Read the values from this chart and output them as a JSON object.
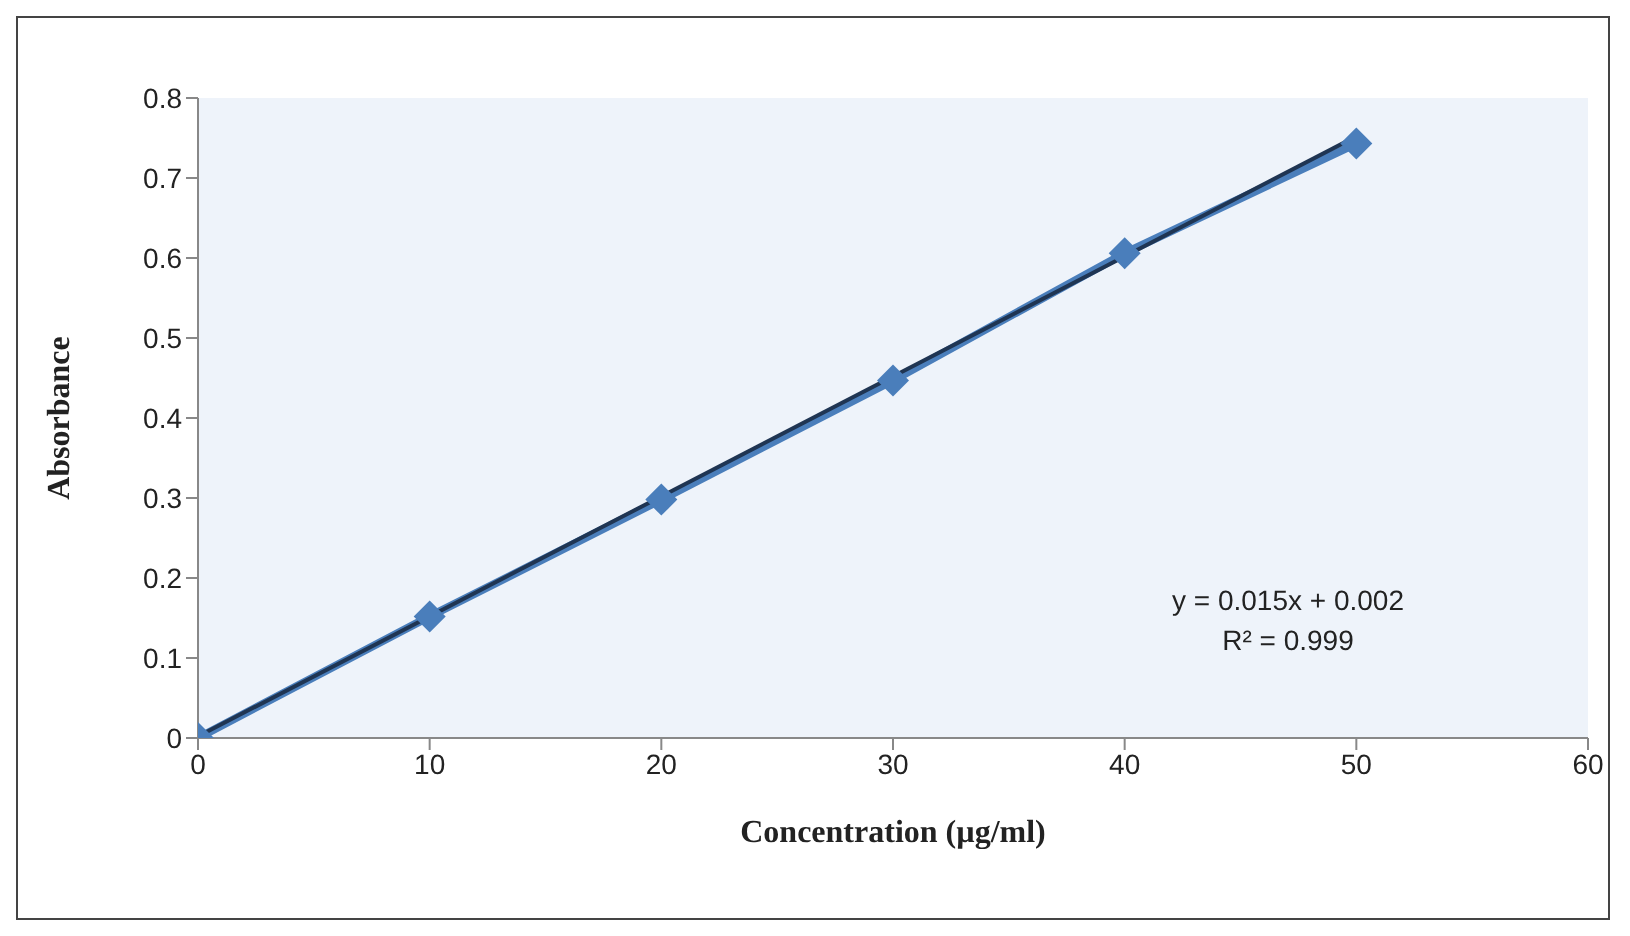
{
  "chart_data": {
    "type": "line",
    "xlabel": "Concentration (µg/ml)",
    "ylabel": "Absorbance",
    "xlim": [
      0,
      60
    ],
    "xticks": [
      0,
      10,
      20,
      30,
      40,
      50,
      60
    ],
    "ylim": [
      0,
      0.8
    ],
    "yticks": [
      0,
      0.1,
      0.2,
      0.3,
      0.4,
      0.5,
      0.6,
      0.7,
      0.8
    ],
    "grid": false,
    "series": [
      {
        "color": "#4a7ebb",
        "marker": "diamond",
        "x": [
          0,
          10,
          20,
          30,
          40,
          50
        ],
        "values": [
          0,
          0.152,
          0.298,
          0.447,
          0.606,
          0.743
        ]
      },
      {
        "color": "#1f3553",
        "marker": "none",
        "x": [
          0,
          50
        ],
        "values": [
          0.002,
          0.752
        ]
      }
    ],
    "annotations": [
      "y = 0.015x + 0.002",
      "R² = 0.999"
    ]
  }
}
